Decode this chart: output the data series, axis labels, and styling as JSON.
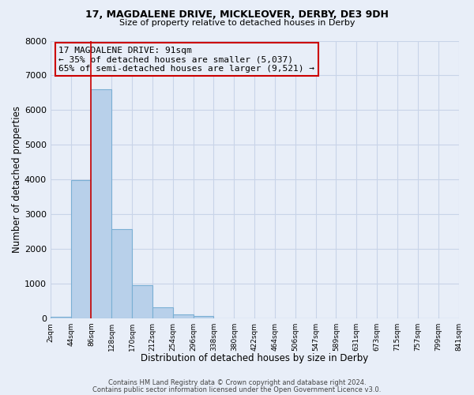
{
  "title1": "17, MAGDALENE DRIVE, MICKLEOVER, DERBY, DE3 9DH",
  "title2": "Size of property relative to detached houses in Derby",
  "xlabel": "Distribution of detached houses by size in Derby",
  "ylabel": "Number of detached properties",
  "footer1": "Contains HM Land Registry data © Crown copyright and database right 2024.",
  "footer2": "Contains public sector information licensed under the Open Government Licence v3.0.",
  "bin_counts": [
    55,
    3980,
    6600,
    2580,
    960,
    320,
    120,
    60,
    0,
    0,
    0,
    0,
    0,
    0,
    0,
    0,
    0,
    0,
    0,
    0
  ],
  "bar_color": "#b8d0ea",
  "bar_edge_color": "#7aafd4",
  "vline_color": "#cc0000",
  "vline_bin_index": 2,
  "annotation_title": "17 MAGDALENE DRIVE: 91sqm",
  "annotation_line1": "← 35% of detached houses are smaller (5,037)",
  "annotation_line2": "65% of semi-detached houses are larger (9,521) →",
  "annotation_box_color": "#cc0000",
  "ylim": [
    0,
    8000
  ],
  "yticks": [
    0,
    1000,
    2000,
    3000,
    4000,
    5000,
    6000,
    7000,
    8000
  ],
  "tick_labels": [
    "2sqm",
    "44sqm",
    "86sqm",
    "128sqm",
    "170sqm",
    "212sqm",
    "254sqm",
    "296sqm",
    "338sqm",
    "380sqm",
    "422sqm",
    "464sqm",
    "506sqm",
    "547sqm",
    "589sqm",
    "631sqm",
    "673sqm",
    "715sqm",
    "757sqm",
    "799sqm",
    "841sqm"
  ],
  "grid_color": "#c8d4e8",
  "bg_color": "#e8eef8",
  "n_bins": 20
}
